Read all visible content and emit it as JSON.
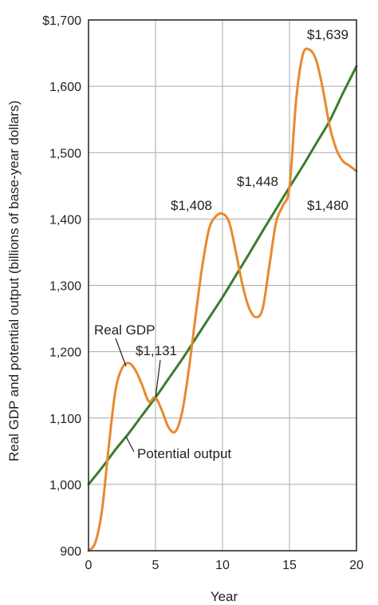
{
  "chart_data": {
    "type": "line",
    "xlabel": "Year",
    "ylabel": "Real GDP and potential output (billions of base-year dollars)",
    "xlim": [
      0,
      20
    ],
    "ylim": [
      900,
      1700
    ],
    "x_ticks": [
      "0",
      "5",
      "10",
      "15",
      "20"
    ],
    "y_ticks": [
      "900",
      "1,000",
      "1,100",
      "1,200",
      "1,300",
      "1,400",
      "1,500",
      "1,600",
      "$1,700"
    ],
    "grid": true,
    "colors": {
      "real_gdp": "#e8892f",
      "potential": "#3a7d2c",
      "grid": "#a7a9ac"
    },
    "series": [
      {
        "name": "Real GDP",
        "x": [
          0,
          0.5,
          1,
          1.5,
          2,
          2.5,
          3,
          3.5,
          4,
          4.5,
          5,
          5.5,
          6,
          6.5,
          7,
          7.5,
          8,
          8.5,
          9,
          9.5,
          10,
          10.5,
          11,
          11.5,
          12,
          12.5,
          13,
          13.5,
          14,
          14.5,
          15,
          15.5,
          16,
          16.5,
          17,
          17.5,
          18,
          18.5,
          19,
          19.5,
          20
        ],
        "values": [
          900,
          912,
          960,
          1055,
          1140,
          1175,
          1183,
          1172,
          1150,
          1125,
          1131,
          1110,
          1085,
          1080,
          1110,
          1175,
          1255,
          1330,
          1385,
          1404,
          1408,
          1395,
          1350,
          1300,
          1265,
          1252,
          1265,
          1330,
          1395,
          1420,
          1448,
          1580,
          1648,
          1655,
          1639,
          1595,
          1540,
          1505,
          1487,
          1480,
          1472
        ]
      },
      {
        "name": "Potential output",
        "x": [
          0,
          1,
          2,
          3,
          4,
          5,
          6,
          7,
          8,
          9,
          10,
          11,
          12,
          13,
          14,
          15,
          16,
          17,
          18,
          19,
          20
        ],
        "values": [
          1000,
          1025,
          1052,
          1077,
          1104,
          1131,
          1160,
          1189,
          1220,
          1251,
          1282,
          1315,
          1348,
          1382,
          1415,
          1448,
          1480,
          1514,
          1548,
          1590,
          1630
        ]
      }
    ],
    "annotations": {
      "v1639": "$1,639",
      "v1448": "$1,448",
      "v1480": "$1,480",
      "v1408": "$1,408",
      "v1131": "$1,131",
      "real_gdp_label": "Real GDP",
      "potential_label": "Potential output"
    }
  }
}
